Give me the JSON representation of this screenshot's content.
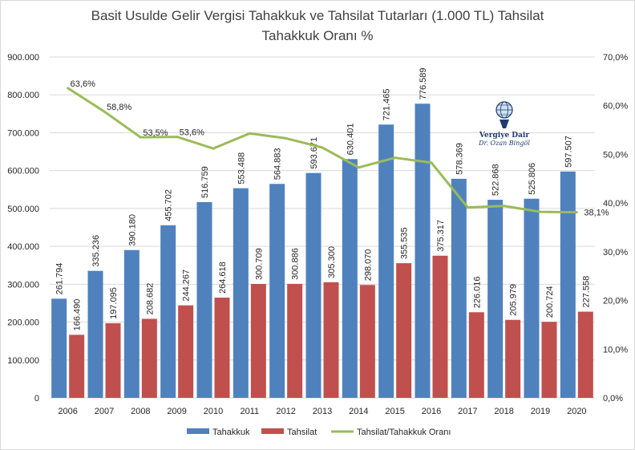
{
  "chart_data": {
    "type": "bar+line",
    "title_lines": [
      "Basit Usulde Gelir Vergisi Tahakkuk ve Tahsilat Tutarları (1.000 TL) Tahsilat",
      "Tahakkuk Oranı %"
    ],
    "categories": [
      "2006",
      "2007",
      "2008",
      "2009",
      "2010",
      "2011",
      "2012",
      "2013",
      "2014",
      "2015",
      "2016",
      "2017",
      "2018",
      "2019",
      "2020"
    ],
    "series": [
      {
        "name": "Tahakkuk",
        "kind": "bar",
        "axis": "left",
        "color": "#4f81bd",
        "values": [
          261794,
          335236,
          390180,
          455702,
          516759,
          553488,
          564883,
          593671,
          630401,
          721465,
          776589,
          578369,
          522868,
          525806,
          597507
        ],
        "labels": [
          "261.794",
          "335.236",
          "390.180",
          "455.702",
          "516.759",
          "553.488",
          "564.883",
          "593.671",
          "630.401",
          "721.465",
          "776.589",
          "578.369",
          "522.868",
          "525.806",
          "597.507"
        ]
      },
      {
        "name": "Tahsilat",
        "kind": "bar",
        "axis": "left",
        "color": "#c0504d",
        "values": [
          166490,
          197095,
          208682,
          244267,
          264618,
          300709,
          300886,
          305300,
          298070,
          355535,
          375317,
          226016,
          205979,
          200724,
          227558
        ],
        "labels": [
          "166.490",
          "197.095",
          "208.682",
          "244.267",
          "264.618",
          "300.709",
          "300.886",
          "305.300",
          "298.070",
          "355.535",
          "375.317",
          "226.016",
          "205.979",
          "200.724",
          "227.558"
        ]
      },
      {
        "name": "Tahsilat/Tahakkuk Oranı",
        "kind": "line",
        "axis": "right",
        "color": "#9bbb59",
        "values": [
          63.6,
          58.8,
          53.5,
          53.6,
          51.2,
          54.3,
          53.3,
          51.4,
          47.3,
          49.3,
          48.3,
          39.1,
          39.4,
          38.2,
          38.1
        ],
        "point_labels": [
          {
            "index": 0,
            "text": "63,6%"
          },
          {
            "index": 1,
            "text": "58,8%"
          },
          {
            "index": 2,
            "text": "53,5%"
          },
          {
            "index": 3,
            "text": "53,6%"
          },
          {
            "index": 14,
            "text": "38,1%"
          }
        ]
      }
    ],
    "y_left": {
      "min": 0,
      "max": 900000,
      "step": 100000,
      "ticks": [
        "0",
        "100.000",
        "200.000",
        "300.000",
        "400.000",
        "500.000",
        "600.000",
        "700.000",
        "800.000",
        "900.000"
      ]
    },
    "y_right": {
      "min": 0,
      "max": 70,
      "step": 10,
      "ticks": [
        "0,0%",
        "10,0%",
        "20,0%",
        "30,0%",
        "40,0%",
        "50,0%",
        "60,0%",
        "70,0%"
      ]
    },
    "grid": true,
    "legend_position": "bottom",
    "logo": {
      "line1": "Vergiye Dair",
      "line2": "Dr. Ozan Bingöl"
    }
  }
}
